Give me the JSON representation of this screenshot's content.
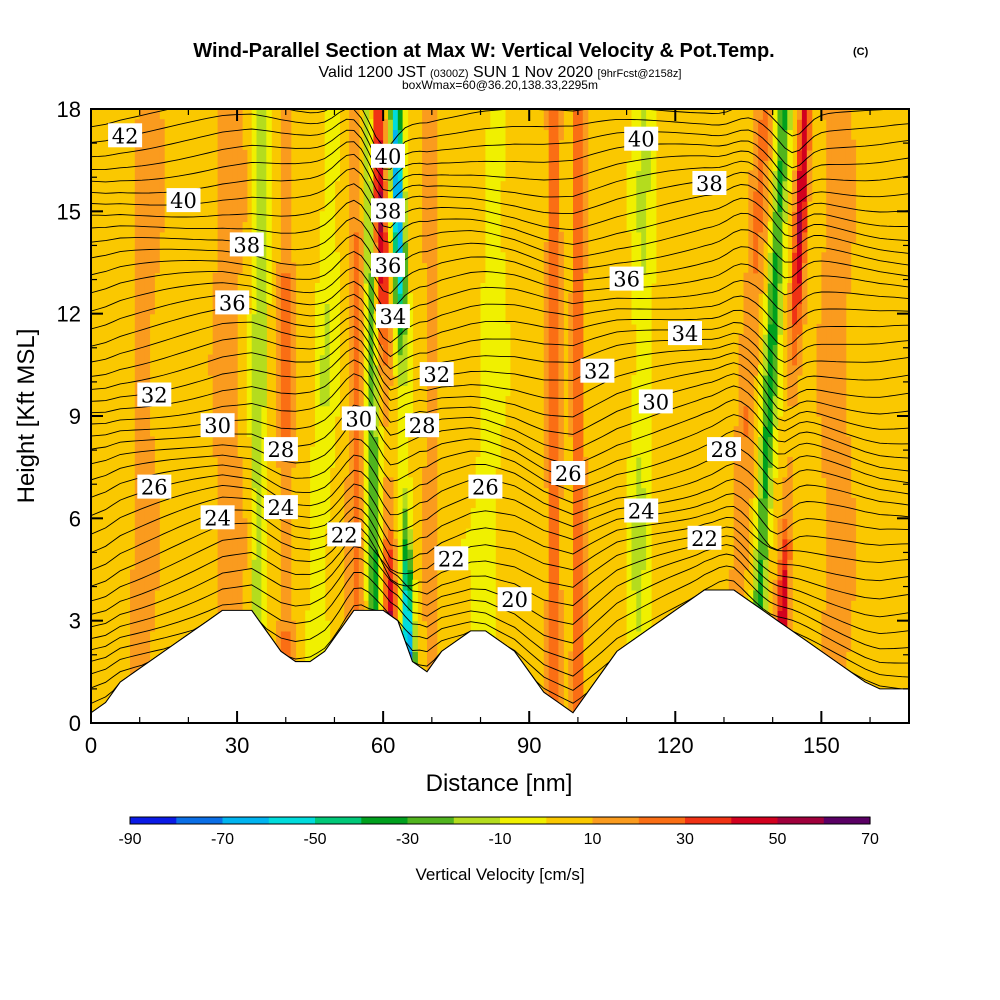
{
  "title": {
    "main": "Wind-Parallel Section at Max W: Vertical Velocity & Pot.Temp.",
    "main_suffix": "(C)",
    "valid_prefix": "Valid 1200 JST",
    "valid_utc": "(0300Z)",
    "valid_date": "SUN 1 Nov 2020",
    "valid_fcst": "[9hrFcst@2158z]",
    "box_info": "boxWmax=60@36.20,138.33,2295m"
  },
  "chart_data": {
    "type": "heatmap",
    "title": "Wind-Parallel Section at Max W: Vertical Velocity & Pot.Temp.",
    "xlabel": "Distance [nm]",
    "ylabel": "Height [Kft MSL]",
    "xlim": [
      0,
      168
    ],
    "ylim": [
      0,
      18
    ],
    "x_ticks": [
      0,
      30,
      60,
      90,
      120,
      150
    ],
    "y_ticks": [
      0,
      3,
      6,
      9,
      12,
      15,
      18
    ],
    "colorbar": {
      "label": "Vertical Velocity [cm/s]",
      "levels": [
        -90,
        -80,
        -70,
        -60,
        -50,
        -40,
        -30,
        -20,
        -10,
        0,
        10,
        20,
        30,
        40,
        50,
        60,
        70
      ],
      "tick_labels": [
        "-90",
        "-70",
        "-50",
        "-30",
        "-10",
        "10",
        "30",
        "50",
        "70"
      ],
      "colors": [
        "#0a1ae6",
        "#0a6ee6",
        "#00b4f0",
        "#00dcdc",
        "#00c878",
        "#00a01e",
        "#50b41e",
        "#b4dc1e",
        "#f0f000",
        "#fac800",
        "#fa9b1e",
        "#fa6e14",
        "#f03214",
        "#d2001e",
        "#a0003c",
        "#5a0064"
      ]
    },
    "terrain_kft": [
      [
        0,
        0.3
      ],
      [
        3,
        0.6
      ],
      [
        6,
        1.2
      ],
      [
        9,
        1.5
      ],
      [
        12,
        1.8
      ],
      [
        15,
        2.1
      ],
      [
        18,
        2.4
      ],
      [
        21,
        2.7
      ],
      [
        24,
        3.0
      ],
      [
        27,
        3.3
      ],
      [
        30,
        3.3
      ],
      [
        33,
        3.3
      ],
      [
        36,
        2.7
      ],
      [
        39,
        2.1
      ],
      [
        42,
        1.8
      ],
      [
        45,
        1.8
      ],
      [
        48,
        2.1
      ],
      [
        51,
        2.7
      ],
      [
        54,
        3.3
      ],
      [
        57,
        3.3
      ],
      [
        60,
        3.3
      ],
      [
        63,
        3.0
      ],
      [
        66,
        1.8
      ],
      [
        69,
        1.5
      ],
      [
        72,
        2.1
      ],
      [
        75,
        2.4
      ],
      [
        78,
        2.7
      ],
      [
        81,
        2.7
      ],
      [
        84,
        2.4
      ],
      [
        87,
        2.1
      ],
      [
        90,
        1.5
      ],
      [
        93,
        0.9
      ],
      [
        96,
        0.6
      ],
      [
        99,
        0.3
      ],
      [
        102,
        0.9
      ],
      [
        105,
        1.5
      ],
      [
        108,
        2.1
      ],
      [
        111,
        2.4
      ],
      [
        114,
        2.7
      ],
      [
        117,
        3.0
      ],
      [
        120,
        3.3
      ],
      [
        123,
        3.6
      ],
      [
        126,
        3.9
      ],
      [
        129,
        3.9
      ],
      [
        132,
        3.9
      ],
      [
        135,
        3.6
      ],
      [
        138,
        3.3
      ],
      [
        141,
        3.0
      ],
      [
        144,
        2.7
      ],
      [
        147,
        2.4
      ],
      [
        150,
        2.1
      ],
      [
        153,
        1.8
      ],
      [
        156,
        1.5
      ],
      [
        159,
        1.2
      ],
      [
        162,
        1.0
      ],
      [
        165,
        1.0
      ],
      [
        168,
        1.0
      ]
    ],
    "isentrope_labels": [
      {
        "x": 7,
        "y": 17.2,
        "text": "42"
      },
      {
        "x": 19,
        "y": 15.3,
        "text": "40"
      },
      {
        "x": 32,
        "y": 14.0,
        "text": "38"
      },
      {
        "x": 29,
        "y": 12.3,
        "text": "36"
      },
      {
        "x": 13,
        "y": 9.6,
        "text": "32"
      },
      {
        "x": 26,
        "y": 8.7,
        "text": "30"
      },
      {
        "x": 39,
        "y": 8.0,
        "text": "28"
      },
      {
        "x": 13,
        "y": 6.9,
        "text": "26"
      },
      {
        "x": 26,
        "y": 6.0,
        "text": "24"
      },
      {
        "x": 39,
        "y": 6.3,
        "text": "24"
      },
      {
        "x": 52,
        "y": 5.5,
        "text": "22"
      },
      {
        "x": 55,
        "y": 8.9,
        "text": "30"
      },
      {
        "x": 61,
        "y": 16.6,
        "text": "40"
      },
      {
        "x": 61,
        "y": 15.0,
        "text": "38"
      },
      {
        "x": 61,
        "y": 13.4,
        "text": "36"
      },
      {
        "x": 62,
        "y": 11.9,
        "text": "34"
      },
      {
        "x": 71,
        "y": 10.2,
        "text": "32"
      },
      {
        "x": 68,
        "y": 8.7,
        "text": "28"
      },
      {
        "x": 81,
        "y": 6.9,
        "text": "26"
      },
      {
        "x": 74,
        "y": 4.8,
        "text": "22"
      },
      {
        "x": 87,
        "y": 3.6,
        "text": "20"
      },
      {
        "x": 98,
        "y": 7.3,
        "text": "26"
      },
      {
        "x": 104,
        "y": 10.3,
        "text": "32"
      },
      {
        "x": 113,
        "y": 17.1,
        "text": "40"
      },
      {
        "x": 127,
        "y": 15.8,
        "text": "38"
      },
      {
        "x": 110,
        "y": 13.0,
        "text": "36"
      },
      {
        "x": 122,
        "y": 11.4,
        "text": "34"
      },
      {
        "x": 116,
        "y": 9.4,
        "text": "30"
      },
      {
        "x": 130,
        "y": 8.0,
        "text": "28"
      },
      {
        "x": 113,
        "y": 6.2,
        "text": "24"
      },
      {
        "x": 126,
        "y": 5.4,
        "text": "22"
      }
    ]
  }
}
